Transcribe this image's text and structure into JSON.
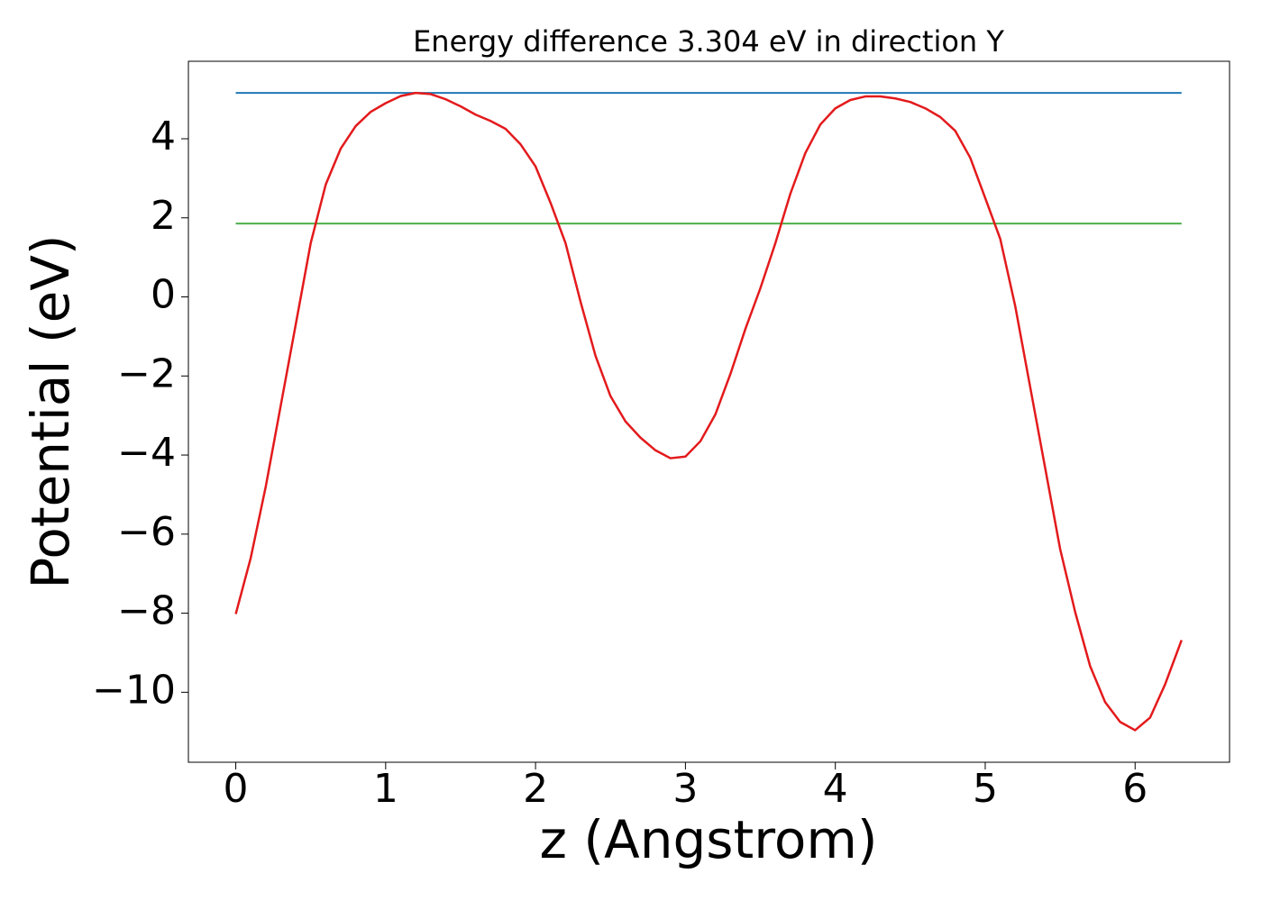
{
  "chart_data": {
    "type": "line",
    "title": "Energy difference 3.304 eV in direction Y",
    "x_label": "z (Angstrom)",
    "y_label": "Potential (eV)",
    "x": [
      0,
      0.1,
      0.2,
      0.3,
      0.4,
      0.5,
      0.6,
      0.7,
      0.8,
      0.9,
      1.0,
      1.1,
      1.2,
      1.3,
      1.4,
      1.5,
      1.6,
      1.7,
      1.8,
      1.9,
      2.0,
      2.1,
      2.2,
      2.3,
      2.4,
      2.5,
      2.6,
      2.7,
      2.8,
      2.9,
      3.0,
      3.1,
      3.2,
      3.3,
      3.4,
      3.5,
      3.6,
      3.7,
      3.8,
      3.9,
      4.0,
      4.1,
      4.2,
      4.3,
      4.4,
      4.5,
      4.6,
      4.7,
      4.8,
      4.9,
      5.0,
      5.1,
      5.2,
      5.3,
      5.4,
      5.5,
      5.6,
      5.7,
      5.8,
      5.9,
      6.0,
      6.1,
      6.2,
      6.31
    ],
    "series": [
      {
        "color": "#e31a1c",
        "values": [
          -8.02,
          -6.6,
          -4.8,
          -2.75,
          -0.7,
          1.36,
          2.84,
          3.75,
          4.32,
          4.68,
          4.9,
          5.08,
          5.16,
          5.13,
          5.0,
          4.82,
          4.61,
          4.45,
          4.25,
          3.86,
          3.3,
          2.38,
          1.36,
          -0.12,
          -1.49,
          -2.51,
          -3.15,
          -3.56,
          -3.88,
          -4.08,
          -4.04,
          -3.65,
          -2.97,
          -1.95,
          -0.81,
          0.22,
          1.36,
          2.61,
          3.64,
          4.36,
          4.77,
          4.98,
          5.07,
          5.07,
          5.02,
          4.93,
          4.77,
          4.55,
          4.2,
          3.52,
          2.5,
          1.47,
          -0.23,
          -2.28,
          -4.33,
          -6.38,
          -7.97,
          -9.34,
          -10.25,
          -10.75,
          -10.96,
          -10.64,
          -9.8,
          -8.68
        ]
      }
    ],
    "hlines": [
      {
        "value": 5.16,
        "xmin": 0,
        "xmax": 6.31,
        "color": "#1f77b4"
      },
      {
        "value": 1.856,
        "xmin": 0,
        "xmax": 6.31,
        "color": "#4daf4a"
      }
    ],
    "xlim": [
      -0.316,
      6.63
    ],
    "ylim": [
      -11.77,
      5.96
    ],
    "xticks": [
      0,
      1,
      2,
      3,
      4,
      5,
      6
    ],
    "yticks": [
      {
        "value": -10,
        "label": "−10"
      },
      {
        "value": -8,
        "label": "−8"
      },
      {
        "value": -6,
        "label": "−6"
      },
      {
        "value": -4,
        "label": "−4"
      },
      {
        "value": -2,
        "label": "−2"
      },
      0,
      2,
      4
    ],
    "grid": false
  }
}
